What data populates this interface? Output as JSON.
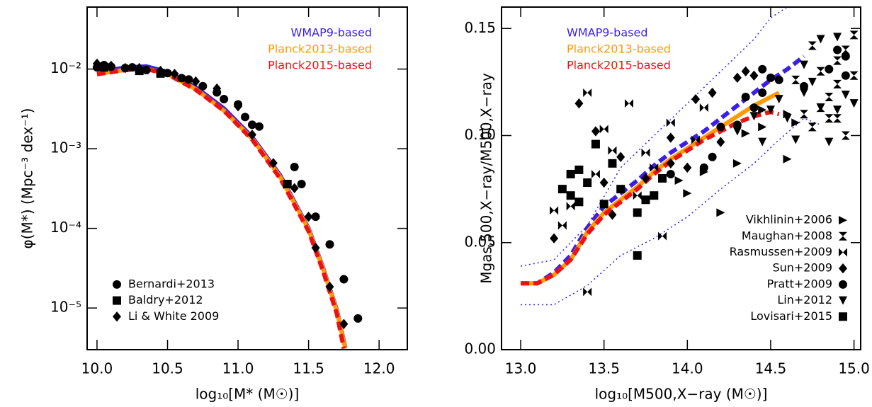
{
  "chart_data": [
    {
      "type": "line",
      "x_label": "log₁₀[M* (M☉)]",
      "y_label": "φ(M*) (Mpc⁻³ dex⁻¹)",
      "xlim": [
        9.93,
        12.2
      ],
      "ylim": [
        3e-06,
        0.06
      ],
      "ylog": true,
      "xticks": [
        {
          "value": 10,
          "label": "10.0"
        },
        10.5,
        {
          "value": 11,
          "label": "11.0"
        },
        11.5,
        {
          "value": 12,
          "label": "12.0"
        }
      ],
      "yticks": [
        {
          "value": 0.01,
          "label": "10⁻²"
        },
        {
          "value": 0.001,
          "label": "10⁻³"
        },
        {
          "value": 0.0001,
          "label": "10⁻⁴"
        },
        {
          "value": 1e-05,
          "label": "10⁻⁵"
        }
      ],
      "line_legend_corner": "top-right",
      "marker_legend_corner": "bottom-left",
      "series": [
        {
          "name": "WMAP9-based",
          "color": "#3b1fe6",
          "kind": "line",
          "dash": "solid",
          "x": [
            10.0,
            10.2,
            10.35,
            10.5,
            10.7,
            10.9,
            11.1,
            11.3,
            11.5,
            11.6,
            11.7,
            11.76
          ],
          "values": [
            0.0092,
            0.0104,
            0.0108,
            0.0092,
            0.0059,
            0.0032,
            0.0014,
            0.00046,
            0.0001,
            3.3e-05,
            9.5e-06,
            3.2e-06
          ]
        },
        {
          "name": "Planck2013-based",
          "color": "#ff9a00",
          "kind": "line",
          "dash": "solid",
          "x": [
            10.0,
            10.2,
            10.35,
            10.5,
            10.7,
            10.9,
            11.1,
            11.3,
            11.5,
            11.6,
            11.7,
            11.76
          ],
          "values": [
            0.0087,
            0.0098,
            0.0101,
            0.0087,
            0.0056,
            0.003,
            0.00134,
            0.00044,
            9.7e-05,
            3.2e-05,
            9.2e-06,
            3.1e-06
          ]
        },
        {
          "name": "Planck2015-based",
          "color": "#ee1111",
          "kind": "line",
          "dash": "dashed",
          "x": [
            10.0,
            10.2,
            10.35,
            10.5,
            10.7,
            10.9,
            11.1,
            11.3,
            11.5,
            11.6,
            11.7,
            11.75
          ],
          "values": [
            0.0086,
            0.0097,
            0.01,
            0.0086,
            0.0055,
            0.003,
            0.0013,
            0.00042,
            9.2e-05,
            3e-05,
            8.5e-06,
            3.1e-06
          ]
        },
        {
          "name": "Bernardi+2013",
          "color": "#000000",
          "kind": "scatter",
          "marker": "circle",
          "x": [
            10.0,
            10.05,
            10.1,
            10.2,
            10.25,
            10.35,
            10.5,
            10.6,
            10.65,
            10.75,
            10.85,
            10.9,
            11.0,
            11.05,
            11.1,
            11.15,
            11.4,
            11.45,
            11.55,
            11.65,
            11.75,
            11.85
          ],
          "values": [
            0.0105,
            0.0112,
            0.0107,
            0.0103,
            0.0105,
            0.0097,
            0.0089,
            0.0077,
            0.0074,
            0.0061,
            0.0051,
            0.0042,
            0.0036,
            0.0025,
            0.002,
            0.0019,
            0.00059,
            0.00036,
            0.00014,
            6.3e-05,
            2.3e-05,
            7.4e-06
          ]
        },
        {
          "name": "Baldry+2012",
          "color": "#000000",
          "kind": "scatter",
          "marker": "square",
          "x": [
            10.05,
            10.3,
            10.45,
            11.35
          ],
          "values": [
            0.0105,
            0.0095,
            0.0088,
            0.00036
          ]
        },
        {
          "name": "Li & White 2009",
          "color": "#000000",
          "kind": "scatter",
          "marker": "diamond",
          "x": [
            10.0,
            10.1,
            10.2,
            10.3,
            10.45,
            10.55,
            10.7,
            10.85,
            11.0,
            11.1,
            11.25,
            11.4,
            11.5,
            11.55,
            11.65,
            11.75
          ],
          "values": [
            0.0117,
            0.011,
            0.0103,
            0.0103,
            0.0095,
            0.0087,
            0.007,
            0.0057,
            0.0034,
            0.0015,
            0.00066,
            0.00032,
            0.00014,
            5.7e-05,
            1.85e-05,
            6.3e-06
          ]
        }
      ]
    },
    {
      "type": "line",
      "x_label": "log₁₀[M500,X−ray (M☉)]",
      "y_label": "Mgas,500,X−ray/M500,X−ray",
      "xlim": [
        12.885,
        15.04
      ],
      "ylim": [
        0,
        0.16
      ],
      "ylog": false,
      "xticks": [
        {
          "value": 13,
          "label": "13.0"
        },
        13.5,
        {
          "value": 14,
          "label": "14.0"
        },
        14.5,
        {
          "value": 15,
          "label": "15.0"
        }
      ],
      "yticks": [
        {
          "value": 0,
          "label": "0.00"
        },
        0.05,
        {
          "value": 0.1,
          "label": "0.10"
        },
        0.15
      ],
      "line_legend_corner": "top-left",
      "marker_legend_corner": "bottom-right",
      "series": [
        {
          "color": "#3b1fe6",
          "kind": "line",
          "dash": "dotted",
          "x": [
            13.0,
            13.2,
            13.4,
            13.6,
            13.8,
            14.0,
            14.2,
            14.4,
            14.5,
            14.6
          ],
          "values": [
            0.039,
            0.042,
            0.058,
            0.085,
            0.1,
            0.115,
            0.13,
            0.145,
            0.155,
            0.16
          ]
        },
        {
          "color": "#3b1fe6",
          "kind": "line",
          "dash": "dotted",
          "x": [
            13.0,
            13.2,
            13.4,
            13.6,
            13.8,
            14.0,
            14.2,
            14.4,
            14.55,
            14.7,
            14.8
          ],
          "values": [
            0.021,
            0.021,
            0.03,
            0.044,
            0.052,
            0.062,
            0.075,
            0.087,
            0.098,
            0.108,
            0.105
          ]
        },
        {
          "name": "WMAP9-based",
          "color": "#3b1fe6",
          "kind": "line",
          "dash": "dashed",
          "x": [
            13.0,
            13.1,
            13.2,
            13.3,
            13.4,
            13.5,
            13.6,
            13.7,
            13.8,
            13.9,
            14.0,
            14.1,
            14.2,
            14.3,
            14.4,
            14.5,
            14.6,
            14.7
          ],
          "values": [
            0.031,
            0.031,
            0.036,
            0.044,
            0.057,
            0.067,
            0.073,
            0.079,
            0.086,
            0.092,
            0.097,
            0.102,
            0.108,
            0.114,
            0.12,
            0.126,
            0.131,
            0.137
          ]
        },
        {
          "name": "Planck2013-based",
          "color": "#ff9a00",
          "kind": "line",
          "dash": "solid",
          "x": [
            13.0,
            13.1,
            13.2,
            13.3,
            13.4,
            13.5,
            13.6,
            13.7,
            13.8,
            13.9,
            14.0,
            14.1,
            14.2,
            14.3,
            14.4,
            14.5,
            14.55
          ],
          "values": [
            0.031,
            0.031,
            0.035,
            0.042,
            0.055,
            0.064,
            0.07,
            0.076,
            0.083,
            0.089,
            0.094,
            0.099,
            0.104,
            0.109,
            0.114,
            0.118,
            0.12
          ]
        },
        {
          "name": "Planck2015-based",
          "color": "#ee1111",
          "kind": "line",
          "dash": "dashed",
          "x": [
            13.0,
            13.1,
            13.2,
            13.3,
            13.4,
            13.5,
            13.6,
            13.7,
            13.8,
            13.9,
            14.0,
            14.1,
            14.2,
            14.3,
            14.4,
            14.5,
            14.55
          ],
          "values": [
            0.031,
            0.031,
            0.035,
            0.042,
            0.054,
            0.063,
            0.069,
            0.075,
            0.082,
            0.088,
            0.093,
            0.098,
            0.102,
            0.106,
            0.109,
            0.111,
            0.11
          ]
        },
        {
          "name": "Vikhlinin+2006",
          "color": "#000000",
          "kind": "scatter",
          "marker": "triangle-right",
          "x": [
            13.95,
            14.0,
            14.1,
            14.2,
            14.3,
            14.35,
            14.45,
            14.45,
            14.6,
            14.6,
            14.65
          ],
          "values": [
            0.079,
            0.073,
            0.083,
            0.064,
            0.087,
            0.101,
            0.104,
            0.112,
            0.11,
            0.089,
            0.106
          ]
        },
        {
          "name": "Maughan+2008",
          "color": "#000000",
          "kind": "scatter",
          "marker": "hourglass",
          "x": [
            14.65,
            14.7,
            14.75,
            14.75,
            14.8,
            14.8,
            14.85,
            14.85,
            14.9,
            14.9,
            14.9,
            14.95,
            14.95,
            15.0,
            15.0
          ],
          "values": [
            0.126,
            0.11,
            0.142,
            0.104,
            0.13,
            0.113,
            0.118,
            0.108,
            0.124,
            0.135,
            0.108,
            0.14,
            0.1,
            0.147,
            0.128
          ]
        },
        {
          "name": "Rasmussen+2009",
          "color": "#000000",
          "kind": "scatter",
          "marker": "bowtie",
          "x": [
            13.2,
            13.25,
            13.3,
            13.4,
            13.4,
            13.45,
            13.5,
            13.55,
            13.65,
            13.7,
            13.75,
            13.8,
            13.85,
            13.9,
            14.05,
            14.1
          ],
          "values": [
            0.065,
            0.058,
            0.067,
            0.12,
            0.027,
            0.082,
            0.103,
            0.093,
            0.115,
            0.072,
            0.092,
            0.085,
            0.053,
            0.106,
            0.098,
            0.113
          ]
        },
        {
          "name": "Sun+2009",
          "color": "#000000",
          "kind": "scatter",
          "marker": "diamond",
          "x": [
            13.2,
            13.35,
            13.45,
            13.5,
            13.55,
            13.6,
            13.75,
            13.9,
            13.9,
            14.0,
            14.05,
            14.15,
            14.2,
            14.3,
            14.35,
            14.4
          ],
          "values": [
            0.052,
            0.115,
            0.102,
            0.078,
            0.063,
            0.09,
            0.08,
            0.087,
            0.099,
            0.085,
            0.117,
            0.12,
            0.097,
            0.127,
            0.13,
            0.128
          ]
        },
        {
          "name": "Pratt+2009",
          "color": "#000000",
          "kind": "scatter",
          "marker": "circle",
          "x": [
            13.9,
            14.1,
            14.15,
            14.2,
            14.3,
            14.35,
            14.4,
            14.45,
            14.45,
            14.5,
            14.55,
            14.7,
            14.85,
            14.9,
            14.95,
            14.95
          ],
          "values": [
            0.082,
            0.085,
            0.09,
            0.104,
            0.105,
            0.118,
            0.113,
            0.12,
            0.131,
            0.127,
            0.126,
            0.123,
            0.131,
            0.14,
            0.137,
            0.128
          ]
        },
        {
          "name": "Lin+2012",
          "color": "#000000",
          "kind": "scatter",
          "marker": "triangle-down",
          "x": [
            14.3,
            14.4,
            14.45,
            14.5,
            14.55,
            14.6,
            14.65,
            14.7,
            14.7,
            14.75,
            14.8,
            14.8,
            14.85,
            14.9,
            14.9,
            14.95,
            15.0
          ],
          "values": [
            0.102,
            0.109,
            0.097,
            0.112,
            0.117,
            0.108,
            0.098,
            0.12,
            0.133,
            0.125,
            0.113,
            0.145,
            0.097,
            0.112,
            0.146,
            0.119,
            0.115
          ]
        },
        {
          "name": "Lovisari+2015",
          "color": "#000000",
          "kind": "scatter",
          "marker": "square",
          "x": [
            13.25,
            13.3,
            13.3,
            13.35,
            13.35,
            13.4,
            13.45,
            13.5,
            13.55,
            13.6,
            13.7,
            13.7,
            13.75,
            13.8,
            13.85
          ],
          "values": [
            0.075,
            0.082,
            0.072,
            0.084,
            0.069,
            0.078,
            0.096,
            0.068,
            0.087,
            0.075,
            0.064,
            0.044,
            0.07,
            0.072,
            0.08
          ]
        }
      ]
    }
  ]
}
